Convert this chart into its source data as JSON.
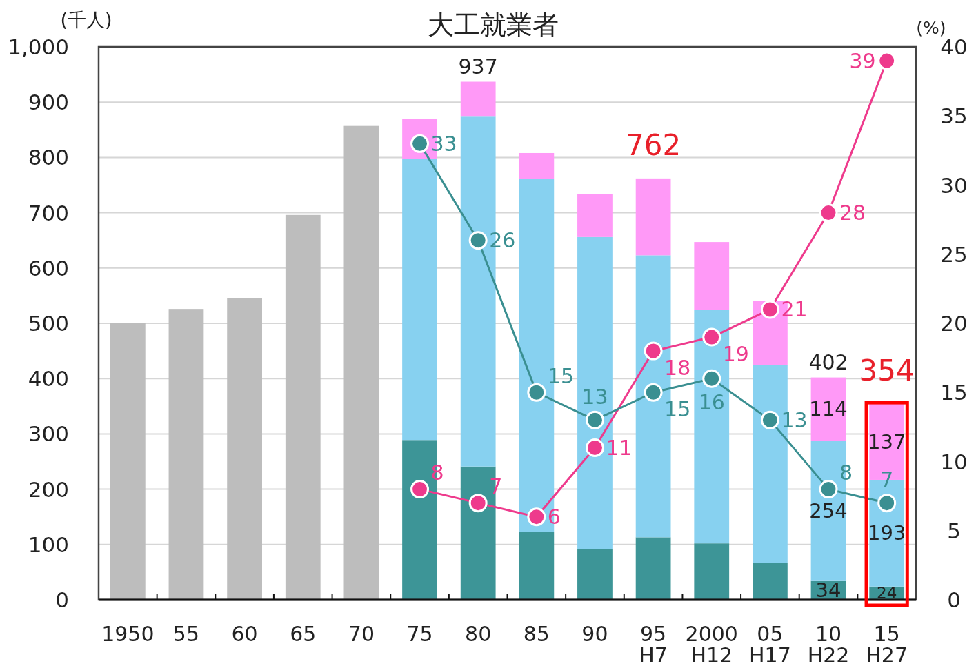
{
  "chart_data": {
    "type": "bar",
    "title": "大工就業者",
    "ylabel": "(千人)",
    "y2label": "(%)",
    "categories": [
      "1950",
      "55",
      "60",
      "65",
      "70",
      "75",
      "80",
      "85",
      "90",
      "95\nH7",
      "2000\nH12",
      "05\nH17",
      "10\nH22",
      "15\nH27"
    ],
    "stacked": true,
    "ylim": [
      0,
      1000
    ],
    "yticks": [
      0,
      100,
      200,
      300,
      400,
      500,
      600,
      700,
      800,
      900,
      {
        "value": 1000,
        "label": "1,000"
      }
    ],
    "y2lim": [
      0,
      40
    ],
    "y2ticks": [
      0,
      5,
      10,
      15,
      20,
      25,
      30,
      35,
      40
    ],
    "grid": "y",
    "marker": "circle",
    "series": [
      {
        "color": "#bdbdbd",
        "values": [
          500,
          526,
          545,
          696,
          857,
          null,
          null,
          null,
          null,
          null,
          null,
          null,
          null,
          null
        ]
      },
      {
        "color": "#3d9597",
        "values": [
          null,
          null,
          null,
          null,
          null,
          289,
          241,
          123,
          92,
          113,
          102,
          67,
          34,
          24
        ],
        "value_labels": [
          null,
          null,
          null,
          null,
          null,
          null,
          null,
          null,
          null,
          null,
          null,
          null,
          "34",
          "24"
        ]
      },
      {
        "color": "#87d1f0",
        "values": [
          null,
          null,
          null,
          null,
          null,
          509,
          634,
          638,
          564,
          510,
          422,
          357,
          254,
          193
        ],
        "value_labels": [
          null,
          null,
          null,
          null,
          null,
          null,
          null,
          null,
          null,
          null,
          null,
          null,
          "254",
          "193"
        ]
      },
      {
        "color": "#ff99f7",
        "values": [
          null,
          null,
          null,
          null,
          null,
          72,
          62,
          47,
          78,
          139,
          123,
          116,
          114,
          137
        ],
        "value_labels": [
          null,
          null,
          null,
          null,
          null,
          null,
          null,
          null,
          null,
          null,
          null,
          null,
          "114",
          "137"
        ]
      },
      {
        "type": "line",
        "axis": "y2",
        "color": "#ee3a8c",
        "values": [
          null,
          null,
          null,
          null,
          null,
          8,
          7,
          6,
          11,
          18,
          19,
          21,
          28,
          39
        ],
        "value_labels": [
          null,
          null,
          null,
          null,
          null,
          "8",
          "7",
          "6",
          "11",
          "18",
          "19",
          "21",
          "28",
          "39"
        ]
      },
      {
        "type": "line",
        "axis": "y2",
        "color": "#3a8f91",
        "values": [
          null,
          null,
          null,
          null,
          null,
          33,
          26,
          15,
          13,
          15,
          16,
          13,
          8,
          7
        ],
        "value_labels": [
          null,
          null,
          null,
          null,
          null,
          "33",
          "26",
          "15",
          "13",
          "15",
          "16",
          "13",
          "8",
          "7"
        ]
      }
    ],
    "totals": [
      null,
      null,
      null,
      null,
      null,
      null,
      "937",
      null,
      null,
      null,
      null,
      null,
      "402",
      null
    ],
    "annotations": [
      {
        "text": "762",
        "x": "95\nH7",
        "y": 762
      },
      {
        "text": "354",
        "x": "15\nH27",
        "y": 354
      }
    ]
  }
}
